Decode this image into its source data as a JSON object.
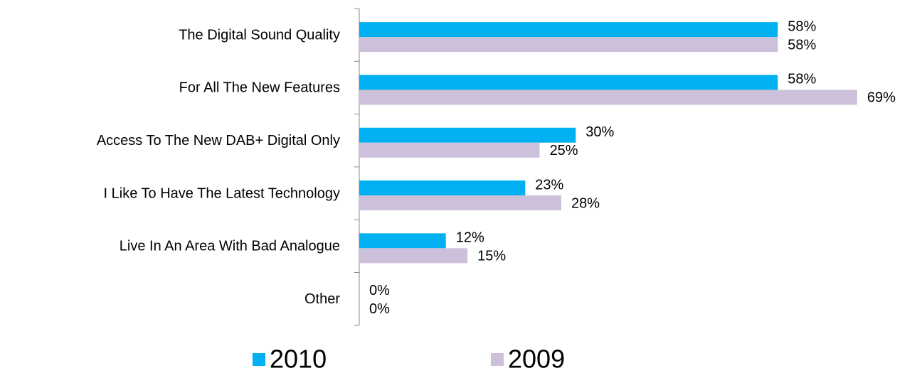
{
  "chart_data": {
    "type": "barh",
    "categories": [
      "The Digital Sound Quality",
      "For All The New Features",
      "Access To The New DAB+ Digital Only",
      "I Like To Have The Latest Technology",
      "Live In An Area With Bad Analogue",
      "Other"
    ],
    "series": [
      {
        "name": "2010",
        "color": "#00b0f0",
        "values": [
          58,
          58,
          30,
          23,
          12,
          0
        ],
        "value_labels": [
          "58%",
          "58%",
          "30%",
          "23%",
          "12%",
          "0%"
        ]
      },
      {
        "name": "2009",
        "color": "#ccc0da",
        "values": [
          58,
          69,
          25,
          28,
          15,
          0
        ],
        "value_labels": [
          "58%",
          "69%",
          "25%",
          "28%",
          "15%",
          "0%"
        ]
      }
    ],
    "xlim": [
      0,
      77
    ],
    "legend": "bottom"
  }
}
